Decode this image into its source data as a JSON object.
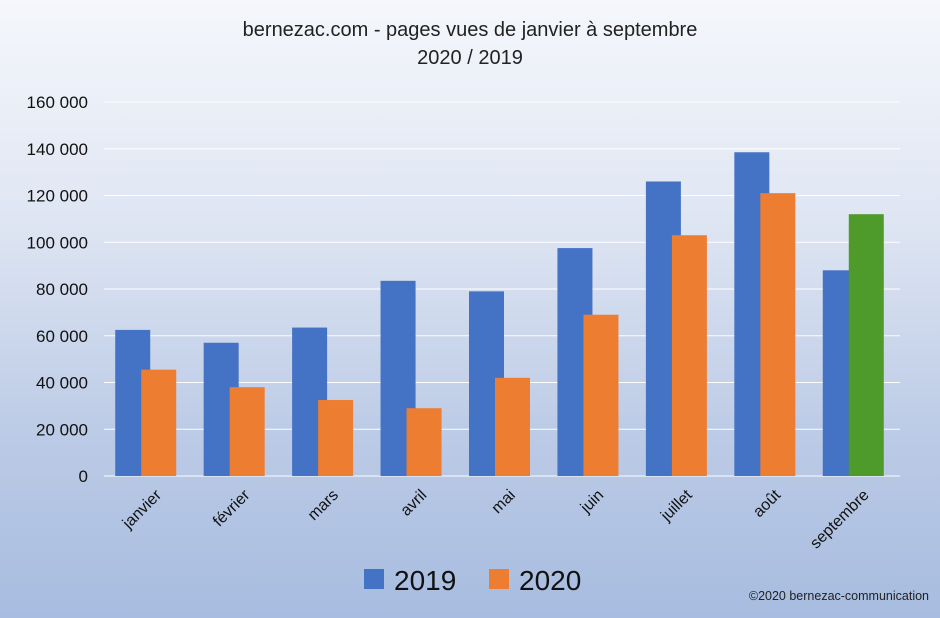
{
  "chart_data": {
    "type": "bar",
    "title": [
      "bernezac.com - pages vues de janvier à septembre",
      "2020 / 2019"
    ],
    "categories": [
      "janvier",
      "février",
      "mars",
      "avril",
      "mai",
      "juin",
      "juillet",
      "août",
      "septembre"
    ],
    "series": [
      {
        "name": "2019",
        "color": "#4472c4",
        "values": [
          62500,
          57000,
          63500,
          83500,
          79000,
          97500,
          126000,
          138500,
          88000
        ]
      },
      {
        "name": "2020",
        "color": "#ed7d31",
        "values": [
          45500,
          38000,
          32500,
          29000,
          42000,
          69000,
          103000,
          121000,
          112000
        ]
      }
    ],
    "highlight": {
      "series": 1,
      "category": 8,
      "color": "#4e9a2a"
    },
    "ylim": [
      0,
      160000
    ],
    "yticks": [
      0,
      20000,
      40000,
      60000,
      80000,
      100000,
      120000,
      140000,
      160000
    ],
    "ytick_labels": [
      "0",
      "20 000",
      "40 000",
      "60 000",
      "80 000",
      "100 000",
      "120 000",
      "140 000",
      "160 000"
    ],
    "grid": true,
    "legend_position": "bottom-center"
  },
  "credit": "©2020 bernezac-communication"
}
